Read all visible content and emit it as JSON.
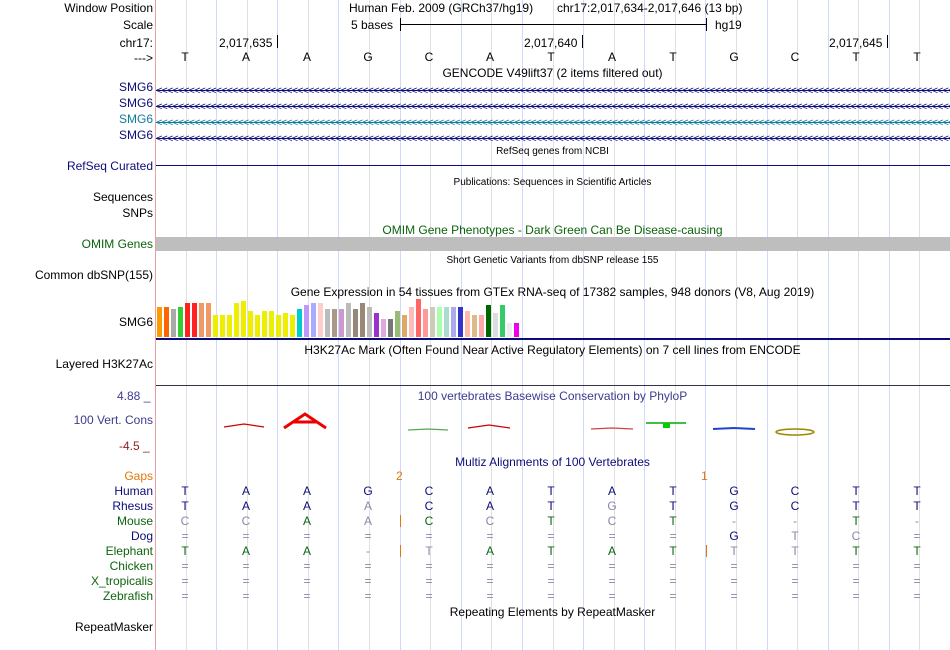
{
  "header": {
    "window_position_label": "Window Position",
    "scale_label": "Scale",
    "chrom_label": "chr17:",
    "arrow_label": "--->",
    "assembly_text": "Human Feb. 2009 (GRCh37/hg19)",
    "position_text": "chr17:2,017,634-2,017,646 (13 bp)",
    "scale_text": "5 bases",
    "db_text": "hg19",
    "ruler_ticks": [
      "2,017,635",
      "2,017,640",
      "2,017,645"
    ],
    "bases": [
      "T",
      "A",
      "A",
      "G",
      "C",
      "A",
      "T",
      "A",
      "T",
      "G",
      "C",
      "T",
      "T"
    ]
  },
  "tracks": {
    "gencode": {
      "title": "GENCODE V49lift37 (2 items filtered out)",
      "items": [
        {
          "label": "SMG6",
          "color": "#0c0c78"
        },
        {
          "label": "SMG6",
          "color": "#0c0c78"
        },
        {
          "label": "SMG6",
          "color": "#0d7c9c"
        },
        {
          "label": "SMG6",
          "color": "#0c0c78"
        }
      ]
    },
    "refseq": {
      "title": "RefSeq genes from NCBI",
      "label": "RefSeq Curated",
      "color": "#0c0c78"
    },
    "publications": {
      "title": "Publications: Sequences in Scientific Articles",
      "label1": "Sequences",
      "label2": "SNPs"
    },
    "omim": {
      "title": "OMIM Gene Phenotypes - Dark Green Can Be Disease-causing",
      "label": "OMIM Genes",
      "color": "#0c640c"
    },
    "dbsnp": {
      "title": "Short Genetic Variants from dbSNP release 155",
      "label": "Common dbSNP(155)"
    },
    "gtex": {
      "title": "Gene Expression in 54 tissues from GTEx RNA-seq of 17382 samples, 948 donors (V8, Aug 2019)",
      "label": "SMG6",
      "bars": [
        {
          "c": "#ff9900",
          "v": 30
        },
        {
          "c": "#ff6600",
          "v": 30
        },
        {
          "c": "#aaaaaa",
          "v": 28
        },
        {
          "c": "#33cc33",
          "v": 30
        },
        {
          "c": "#ff2222",
          "v": 34
        },
        {
          "c": "#ff2222",
          "v": 34
        },
        {
          "c": "#ee9966",
          "v": 34
        },
        {
          "c": "#ee9966",
          "v": 34
        },
        {
          "c": "#eeee00",
          "v": 22
        },
        {
          "c": "#eeee00",
          "v": 22
        },
        {
          "c": "#eeee00",
          "v": 22
        },
        {
          "c": "#eeee00",
          "v": 34
        },
        {
          "c": "#eeee00",
          "v": 36
        },
        {
          "c": "#eeee00",
          "v": 26
        },
        {
          "c": "#eeee00",
          "v": 22
        },
        {
          "c": "#eeee00",
          "v": 26
        },
        {
          "c": "#eeee00",
          "v": 26
        },
        {
          "c": "#eeee00",
          "v": 22
        },
        {
          "c": "#eeee00",
          "v": 24
        },
        {
          "c": "#eeee00",
          "v": 22
        },
        {
          "c": "#00cccc",
          "v": 28
        },
        {
          "c": "#bb99ff",
          "v": 32
        },
        {
          "c": "#aaaaff",
          "v": 34
        },
        {
          "c": "#ffcccc",
          "v": 34
        },
        {
          "c": "#bbbbbb",
          "v": 28
        },
        {
          "c": "#aa9988",
          "v": 28
        },
        {
          "c": "#cc99cc",
          "v": 28
        },
        {
          "c": "#bbbbbb",
          "v": 34
        },
        {
          "c": "#998877",
          "v": 28
        },
        {
          "c": "#998877",
          "v": 34
        },
        {
          "c": "#bbbbbb",
          "v": 30
        },
        {
          "c": "#9933cc",
          "v": 24
        },
        {
          "c": "#ddaadd",
          "v": 18
        },
        {
          "c": "#777777",
          "v": 18
        },
        {
          "c": "#99bb77",
          "v": 26
        },
        {
          "c": "#ddaa66",
          "v": 22
        },
        {
          "c": "#ffbbbb",
          "v": 30
        },
        {
          "c": "#ff6666",
          "v": 38
        },
        {
          "c": "#ff9999",
          "v": 28
        },
        {
          "c": "#ccccbb",
          "v": 30
        },
        {
          "c": "#aaffaa",
          "v": 30
        },
        {
          "c": "#aaddcc",
          "v": 30
        },
        {
          "c": "#aaaaee",
          "v": 30
        },
        {
          "c": "#3333cc",
          "v": 30
        },
        {
          "c": "#ffbbaa",
          "v": 26
        },
        {
          "c": "#ddbb88",
          "v": 22
        },
        {
          "c": "#ffaaaa",
          "v": 22
        },
        {
          "c": "#006600",
          "v": 32
        },
        {
          "c": "#dddddd",
          "v": 24
        },
        {
          "c": "#33cc66",
          "v": 32
        },
        {
          "c": "#eeeeee",
          "v": 14
        },
        {
          "c": "#ee00ee",
          "v": 14
        }
      ]
    },
    "h3k27ac": {
      "title": "H3K27Ac Mark (Often Found Near Active Regulatory Elements) on 7 cell lines from ENCODE",
      "label": "Layered H3K27Ac"
    },
    "phylop": {
      "title": "100 vertebrates Basewise Conservation by PhyloP",
      "label": "100 Vert. Cons",
      "max": "4.88 _",
      "min": "-4.5 _",
      "color": "#3c3c8c",
      "min_color": "#8c1e1e"
    },
    "multiz": {
      "title": "Multiz Alignments of 100 Vertebrates",
      "gaps_label": "Gaps",
      "gap_marks": [
        "2",
        "1"
      ],
      "species": [
        {
          "name": "Human",
          "color": "#0c0c78",
          "row": [
            "T",
            "A",
            "A",
            "G",
            "C",
            "A",
            "T",
            "A",
            "T",
            "G",
            "C",
            "T",
            "T"
          ]
        },
        {
          "name": "Rhesus",
          "color": "#0c0c78",
          "row": [
            "T",
            "A",
            "A",
            "A",
            "C",
            "A",
            "T",
            "G",
            "T",
            "G",
            "C",
            "T",
            "T"
          ]
        },
        {
          "name": "Mouse",
          "color": "#0c640c",
          "row": [
            "C",
            "C",
            "A",
            "A",
            "C",
            "C",
            "T",
            "C",
            "T",
            "-",
            "-",
            "T",
            "-"
          ]
        },
        {
          "name": "Dog",
          "color": "#0c0c78",
          "row": [
            "=",
            "=",
            "=",
            "=",
            "=",
            "=",
            "=",
            "=",
            "=",
            "G",
            "T",
            "C",
            "="
          ]
        },
        {
          "name": "Elephant",
          "color": "#0c640c",
          "row": [
            "T",
            "A",
            "A",
            "-",
            "T",
            "A",
            "T",
            "A",
            "T",
            "T",
            "T",
            "T",
            "T"
          ]
        },
        {
          "name": "Chicken",
          "color": "#0c640c",
          "row": [
            "=",
            "=",
            "=",
            "=",
            "=",
            "=",
            "=",
            "=",
            "=",
            "=",
            "=",
            "=",
            "="
          ]
        },
        {
          "name": "X_tropicalis",
          "color": "#0c640c",
          "row": [
            "=",
            "=",
            "=",
            "=",
            "=",
            "=",
            "=",
            "=",
            "=",
            "=",
            "=",
            "=",
            "="
          ]
        },
        {
          "name": "Zebrafish",
          "color": "#0c640c",
          "row": [
            "=",
            "=",
            "=",
            "=",
            "=",
            "=",
            "=",
            "=",
            "=",
            "=",
            "=",
            "=",
            "="
          ]
        }
      ]
    },
    "repeatmasker": {
      "title": "Repeating Elements by RepeatMasker",
      "label": "RepeatMasker"
    }
  }
}
